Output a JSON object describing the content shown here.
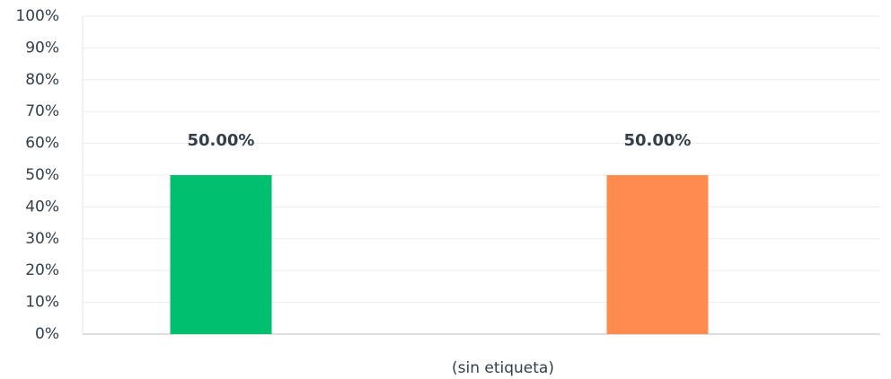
{
  "chart_data": {
    "type": "bar",
    "categories": [
      "(sin etiqueta)"
    ],
    "series": [
      {
        "color": "#00bf6f",
        "values": [
          50
        ],
        "value_labels": [
          "50.00%"
        ]
      },
      {
        "color": "#ff8b4f",
        "values": [
          50
        ],
        "value_labels": [
          "50.00%"
        ]
      }
    ],
    "ylim": [
      0,
      100
    ],
    "yticks": [
      {
        "value": 0,
        "label": "0%"
      },
      {
        "value": 10,
        "label": "10%"
      },
      {
        "value": 20,
        "label": "20%"
      },
      {
        "value": 30,
        "label": "30%"
      },
      {
        "value": 40,
        "label": "40%"
      },
      {
        "value": 50,
        "label": "50%"
      },
      {
        "value": 60,
        "label": "60%"
      },
      {
        "value": 70,
        "label": "70%"
      },
      {
        "value": 80,
        "label": "80%"
      },
      {
        "value": 90,
        "label": "90%"
      },
      {
        "value": 100,
        "label": "100%"
      }
    ],
    "grid": true
  }
}
